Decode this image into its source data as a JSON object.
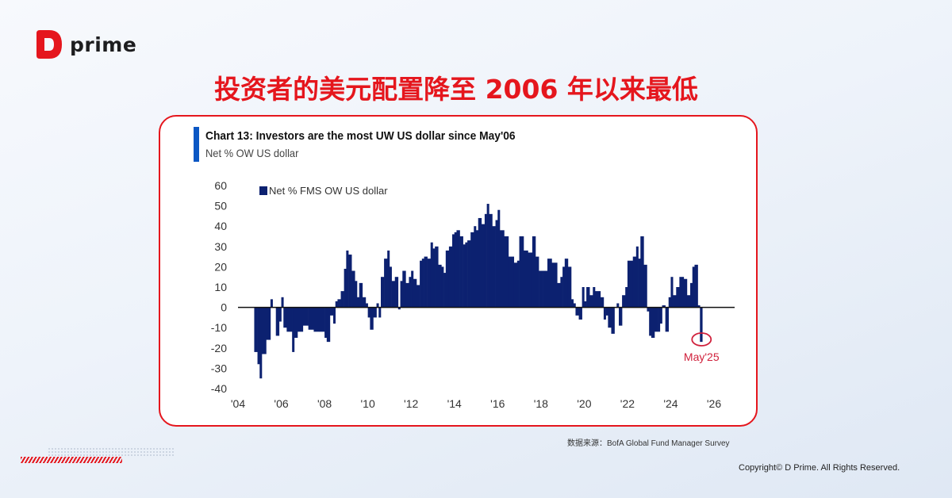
{
  "brand": {
    "name": "prime",
    "accent": "#e5161d"
  },
  "headline": "投资者的美元配置降至 2006 年以来最低",
  "chart_data": {
    "type": "bar",
    "title": "Chart 13: Investors are the most UW US dollar since May'06",
    "subtitle": "Net % OW US dollar",
    "legend": "Net % FMS OW US dollar",
    "legend_position": "top-left",
    "bar_color": "#0c2170",
    "annotation": {
      "label": "May'25",
      "x": 2025.35,
      "color": "#d0213c"
    },
    "ylim": [
      -40,
      60
    ],
    "yticks": [
      60,
      50,
      40,
      30,
      20,
      10,
      0,
      -10,
      -20,
      -30,
      -40
    ],
    "xlim": [
      2004,
      2026
    ],
    "xticks": [
      {
        "v": 2004,
        "label": "'04"
      },
      {
        "v": 2006,
        "label": "'06"
      },
      {
        "v": 2008,
        "label": "'08"
      },
      {
        "v": 2010,
        "label": "'10"
      },
      {
        "v": 2012,
        "label": "'12"
      },
      {
        "v": 2014,
        "label": "'14"
      },
      {
        "v": 2016,
        "label": "'16"
      },
      {
        "v": 2018,
        "label": "'18"
      },
      {
        "v": 2020,
        "label": "'20"
      },
      {
        "v": 2022,
        "label": "'22"
      },
      {
        "v": 2024,
        "label": "'24"
      },
      {
        "v": 2026,
        "label": "'26"
      }
    ],
    "grid": false,
    "x": [
      2004.75,
      2004.9,
      2005.0,
      2005.1,
      2005.3,
      2005.5,
      2005.6,
      2005.75,
      2005.9,
      2006.0,
      2006.1,
      2006.25,
      2006.5,
      2006.6,
      2006.75,
      2007.0,
      2007.25,
      2007.5,
      2007.75,
      2008.0,
      2008.1,
      2008.25,
      2008.4,
      2008.5,
      2008.6,
      2008.75,
      2008.9,
      2009.0,
      2009.1,
      2009.25,
      2009.4,
      2009.5,
      2009.6,
      2009.75,
      2009.9,
      2010.0,
      2010.1,
      2010.25,
      2010.4,
      2010.5,
      2010.6,
      2010.75,
      2010.9,
      2011.0,
      2011.1,
      2011.25,
      2011.4,
      2011.5,
      2011.6,
      2011.75,
      2011.9,
      2012.0,
      2012.1,
      2012.25,
      2012.4,
      2012.5,
      2012.6,
      2012.75,
      2012.9,
      2013.0,
      2013.1,
      2013.25,
      2013.4,
      2013.5,
      2013.6,
      2013.75,
      2013.9,
      2014.0,
      2014.1,
      2014.25,
      2014.4,
      2014.5,
      2014.6,
      2014.75,
      2014.9,
      2015.0,
      2015.1,
      2015.25,
      2015.4,
      2015.5,
      2015.6,
      2015.75,
      2015.9,
      2016.0,
      2016.1,
      2016.3,
      2016.5,
      2016.75,
      2016.9,
      2017.0,
      2017.2,
      2017.4,
      2017.6,
      2017.75,
      2017.9,
      2018.1,
      2018.3,
      2018.5,
      2018.75,
      2018.9,
      2019.0,
      2019.1,
      2019.25,
      2019.4,
      2019.5,
      2019.6,
      2019.75,
      2019.9,
      2020.0,
      2020.1,
      2020.25,
      2020.4,
      2020.5,
      2020.75,
      2020.9,
      2021.0,
      2021.1,
      2021.25,
      2021.4,
      2021.5,
      2021.6,
      2021.75,
      2021.9,
      2022.0,
      2022.25,
      2022.4,
      2022.5,
      2022.6,
      2022.75,
      2022.9,
      2023.0,
      2023.1,
      2023.25,
      2023.4,
      2023.5,
      2023.6,
      2023.75,
      2023.9,
      2024.0,
      2024.1,
      2024.25,
      2024.4,
      2024.6,
      2024.75,
      2024.9,
      2025.0,
      2025.1,
      2025.25,
      2025.35
    ],
    "values": [
      -22,
      -28,
      -35,
      -23,
      -16,
      4,
      0,
      -14,
      -7,
      5,
      -10,
      -12,
      -22,
      -15,
      -12,
      -9,
      -11,
      -12,
      -12,
      -15,
      -17,
      -4,
      -8,
      3,
      4,
      8,
      19,
      28,
      26,
      18,
      13,
      5,
      12,
      5,
      2,
      -5,
      -11,
      -5,
      2,
      -5,
      15,
      24,
      28,
      20,
      13,
      15,
      -1,
      13,
      18,
      12,
      15,
      18,
      14,
      11,
      23,
      24,
      25,
      24,
      32,
      29,
      30,
      21,
      20,
      17,
      28,
      30,
      36,
      37,
      38,
      35,
      31,
      32,
      33,
      37,
      40,
      38,
      44,
      41,
      46,
      51,
      46,
      40,
      43,
      48,
      38,
      35,
      25,
      22,
      23,
      35,
      28,
      27,
      35,
      25,
      18,
      18,
      24,
      22,
      12,
      15,
      20,
      24,
      20,
      4,
      2,
      -4,
      -6,
      10,
      3,
      10,
      6,
      10,
      8,
      5,
      -6,
      -4,
      -10,
      -13,
      0,
      2,
      -9,
      6,
      10,
      23,
      25,
      30,
      24,
      35,
      21,
      -2,
      -14,
      -15,
      -12,
      -12,
      -8,
      1,
      -12,
      5,
      15,
      6,
      10,
      15,
      14,
      6,
      12,
      20,
      21,
      1,
      -17
    ]
  },
  "source": "数据来源：BofA Global Fund Manager Survey",
  "copyright": "Copyright© D Prime. All Rights Reserved."
}
